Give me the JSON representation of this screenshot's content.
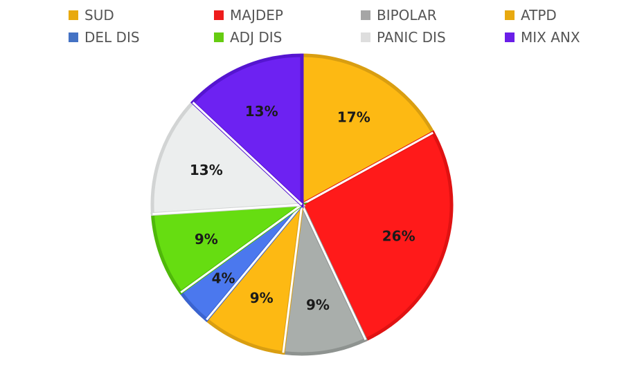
{
  "chart_data": {
    "type": "pie",
    "title": "",
    "legend_position": "top",
    "categories": [
      "SUD",
      "MAJDEP",
      "BIPOLAR",
      "ATPD",
      "DEL DIS",
      "ADJ DIS",
      "PANIC DIS",
      "MIX ANX"
    ],
    "legend_colors": [
      "#e8a90f",
      "#ee1c1c",
      "#a5a5a5",
      "#e8a90f",
      "#4472c4",
      "#66cc11",
      "#dedede",
      "#6a1ee8"
    ],
    "slices": [
      {
        "label": "17%",
        "value": 17,
        "color": "#fdb913",
        "edge": "#d99e11"
      },
      {
        "label": "26%",
        "value": 26,
        "color": "#ff1a1a",
        "edge": "#e01212"
      },
      {
        "label": "9%",
        "value": 9,
        "color": "#a9aeab",
        "edge": "#8e9390"
      },
      {
        "label": "9%",
        "value": 9,
        "color": "#fdb913",
        "edge": "#d99e11"
      },
      {
        "label": "4%",
        "value": 4,
        "color": "#4b78ee",
        "edge": "#3a63cf"
      },
      {
        "label": "9%",
        "value": 9,
        "color": "#66dd11",
        "edge": "#4fb80a"
      },
      {
        "label": "13%",
        "value": 13,
        "color": "#eceeee",
        "edge": "#d2d4d4"
      },
      {
        "label": "13%",
        "value": 13,
        "color": "#6d22f2",
        "edge": "#5515d0"
      }
    ]
  }
}
